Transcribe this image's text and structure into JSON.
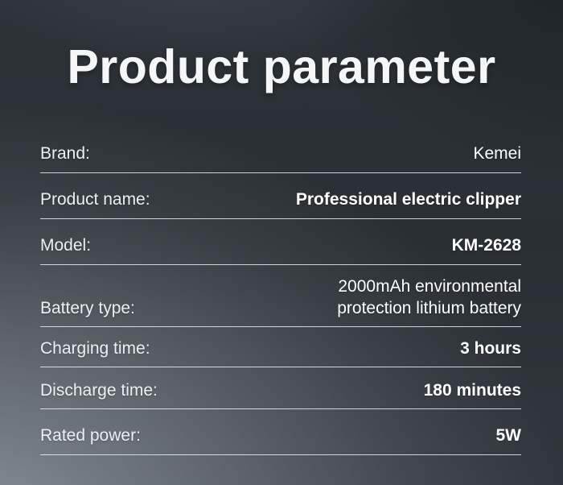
{
  "title": "Product parameter",
  "colors": {
    "background_dark": "#23272c",
    "background_light": "#6d7379",
    "divider": "#e9eef2",
    "label_text": "#edf0f2",
    "value_text": "#ffffff",
    "title_text": "#f4f6f8"
  },
  "parameters": [
    {
      "label": "Brand:",
      "value": "Kemei",
      "bold": false
    },
    {
      "label": "Product name:",
      "value": "Professional electric clipper",
      "bold": true
    },
    {
      "label": "Model:",
      "value": "KM-2628",
      "bold": true
    },
    {
      "label": "Battery type:",
      "value": "2000mAh environmental\nprotection lithium battery",
      "bold": false
    },
    {
      "label": "Charging time:",
      "value": "3 hours",
      "bold": true
    },
    {
      "label": "Discharge time:",
      "value": "180 minutes",
      "bold": true
    },
    {
      "label": "Rated power:",
      "value": "5W",
      "bold": true
    }
  ]
}
